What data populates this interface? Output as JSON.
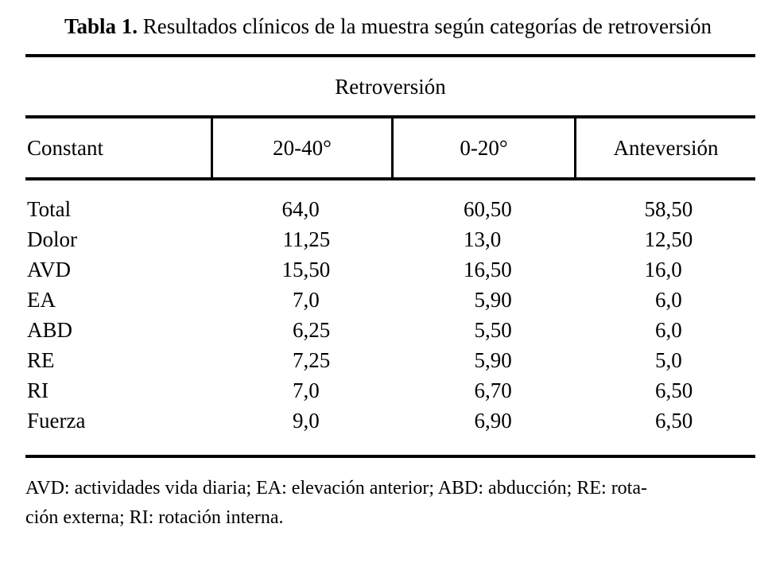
{
  "title": {
    "label": "Tabla 1.",
    "text": " Resultados clínicos de la muestra según categorías de retroversión"
  },
  "table": {
    "group_header": "Retroversión",
    "columns": [
      "Constant",
      "20-40°",
      "0-20°",
      "Anteversión"
    ],
    "rows": [
      {
        "label": "Total",
        "values": [
          "64,0",
          "60,50",
          "58,50"
        ]
      },
      {
        "label": "Dolor",
        "values": [
          "11,25",
          "13,0",
          "12,50"
        ]
      },
      {
        "label": "AVD",
        "values": [
          "15,50",
          "16,50",
          "16,0"
        ]
      },
      {
        "label": "EA",
        "values": [
          "7,0",
          "5,90",
          "6,0"
        ]
      },
      {
        "label": "ABD",
        "values": [
          "6,25",
          "5,50",
          "6,0"
        ]
      },
      {
        "label": "RE",
        "values": [
          "7,25",
          "5,90",
          "5,0"
        ]
      },
      {
        "label": "RI",
        "values": [
          "7,0",
          "6,70",
          "6,50"
        ]
      },
      {
        "label": "Fuerza",
        "values": [
          "9,0",
          "6,90",
          "6,50"
        ]
      }
    ]
  },
  "footnote": {
    "lines": [
      "AVD: actividades vida diaria; EA: elevación anterior; ABD: abducción; RE: rota-",
      "ción externa; RI: rotación interna."
    ]
  },
  "colors": {
    "background": "#ffffff",
    "text": "#000000",
    "rule": "#000000"
  }
}
